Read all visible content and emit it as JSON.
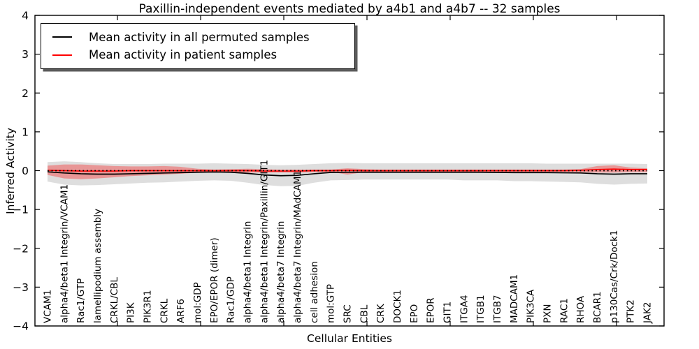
{
  "figure": {
    "title": "Paxillin-independent events mediated by a4b1 and a4b7 -- 32 samples"
  },
  "legend": {
    "position": "upper left",
    "entries": [
      {
        "label": "Mean activity in all permuted samples",
        "color": "#000000"
      },
      {
        "label": "Mean activity in patient samples",
        "color": "#ff0000"
      }
    ]
  },
  "chart_data": {
    "type": "line",
    "title": "Paxillin-independent events mediated by a4b1 and a4b7 -- 32 samples",
    "xlabel": "Cellular Entities",
    "ylabel": "Inferred Activity",
    "ylim": [
      -4,
      4
    ],
    "yticks": [
      -4,
      -3,
      -2,
      -1,
      0,
      1,
      2,
      3,
      4
    ],
    "grid": false,
    "legend_position": "upper left",
    "categories": [
      "VCAM1",
      "alpha4/beta1 Integrin/VCAM1",
      "Rac1/GTP",
      "lamellipodium assembly",
      "CRKL/CBL",
      "PI3K",
      "PIK3R1",
      "CRKL",
      "ARF6",
      "mol:GDP",
      "EPO/EPOR (dimer)",
      "Rac1/GDP",
      "alpha4/beta1 Integrin",
      "alpha4/beta1 Integrin/Paxillin/GIT1",
      "alpha4/beta7 Integrin",
      "alpha4/beta7 Integrin/MAdCAM1",
      "cell adhesion",
      "mol:GTP",
      "SRC",
      "CBL",
      "CRK",
      "DOCK1",
      "EPO",
      "EPOR",
      "GIT1",
      "ITGA4",
      "ITGB1",
      "ITGB7",
      "MADCAM1",
      "PIK3CA",
      "PXN",
      "RAC1",
      "RHOA",
      "BCAR1",
      "p130Cas/Crk/Dock1",
      "PTK2",
      "JAK2"
    ],
    "series": [
      {
        "name": "Mean activity in all permuted samples",
        "color": "#000000",
        "style": "solid",
        "values": [
          -0.03,
          -0.06,
          -0.08,
          -0.09,
          -0.09,
          -0.08,
          -0.07,
          -0.06,
          -0.05,
          -0.04,
          -0.035,
          -0.04,
          -0.07,
          -0.11,
          -0.13,
          -0.12,
          -0.08,
          -0.045,
          -0.04,
          -0.04,
          -0.04,
          -0.04,
          -0.04,
          -0.04,
          -0.04,
          -0.04,
          -0.04,
          -0.045,
          -0.05,
          -0.05,
          -0.05,
          -0.055,
          -0.06,
          -0.08,
          -0.09,
          -0.08,
          -0.08
        ]
      },
      {
        "name": "Mean activity in patient samples",
        "color": "#ff0000",
        "style": "solid",
        "values": [
          0.01,
          0.0,
          -0.01,
          -0.01,
          -0.01,
          0.0,
          0.0,
          0.0,
          0.0,
          0.0,
          0.0,
          0.0,
          0.0,
          -0.01,
          -0.01,
          -0.01,
          0.0,
          0.0,
          0.01,
          0.0,
          0.0,
          0.0,
          0.0,
          0.0,
          0.0,
          0.0,
          0.0,
          0.0,
          0.0,
          0.0,
          0.0,
          0.0,
          0.01,
          0.03,
          0.04,
          0.03,
          0.03
        ]
      }
    ],
    "bands": [
      {
        "name": "permuted-samples-std-band",
        "color": "rgba(0,0,0,0.13)",
        "upper": [
          0.22,
          0.24,
          0.22,
          0.19,
          0.17,
          0.17,
          0.17,
          0.18,
          0.18,
          0.18,
          0.19,
          0.18,
          0.17,
          0.15,
          0.14,
          0.15,
          0.17,
          0.19,
          0.2,
          0.19,
          0.19,
          0.19,
          0.19,
          0.19,
          0.19,
          0.19,
          0.19,
          0.19,
          0.19,
          0.19,
          0.18,
          0.18,
          0.18,
          0.18,
          0.18,
          0.18,
          0.17
        ],
        "lower": [
          -0.28,
          -0.36,
          -0.38,
          -0.37,
          -0.35,
          -0.33,
          -0.31,
          -0.3,
          -0.28,
          -0.26,
          -0.25,
          -0.26,
          -0.31,
          -0.37,
          -0.4,
          -0.39,
          -0.31,
          -0.25,
          -0.24,
          -0.23,
          -0.23,
          -0.23,
          -0.23,
          -0.23,
          -0.23,
          -0.25,
          -0.25,
          -0.25,
          -0.27,
          -0.27,
          -0.28,
          -0.29,
          -0.3,
          -0.34,
          -0.36,
          -0.34,
          -0.33
        ]
      },
      {
        "name": "patient-samples-std-band",
        "color": "rgba(255,0,0,0.32)",
        "upper": [
          0.13,
          0.16,
          0.16,
          0.14,
          0.12,
          0.11,
          0.11,
          0.12,
          0.1,
          0.05,
          0.03,
          0.04,
          0.05,
          0.04,
          0.03,
          0.03,
          0.03,
          0.03,
          0.06,
          0.04,
          0.03,
          0.03,
          0.03,
          0.03,
          0.03,
          0.03,
          0.03,
          0.03,
          0.03,
          0.03,
          0.03,
          0.03,
          0.04,
          0.12,
          0.14,
          0.08,
          0.06
        ],
        "lower": [
          -0.11,
          -0.2,
          -0.22,
          -0.2,
          -0.17,
          -0.14,
          -0.12,
          -0.1,
          -0.08,
          -0.05,
          -0.03,
          -0.04,
          -0.05,
          -0.05,
          -0.05,
          -0.05,
          -0.04,
          -0.03,
          -0.1,
          -0.04,
          -0.03,
          -0.03,
          -0.03,
          -0.03,
          -0.03,
          -0.03,
          -0.03,
          -0.03,
          -0.03,
          -0.03,
          -0.03,
          -0.03,
          -0.04,
          -0.05,
          -0.05,
          -0.04,
          -0.04
        ]
      }
    ],
    "reference_line": {
      "value": 0,
      "style": "dotted",
      "color": "#000000"
    }
  }
}
